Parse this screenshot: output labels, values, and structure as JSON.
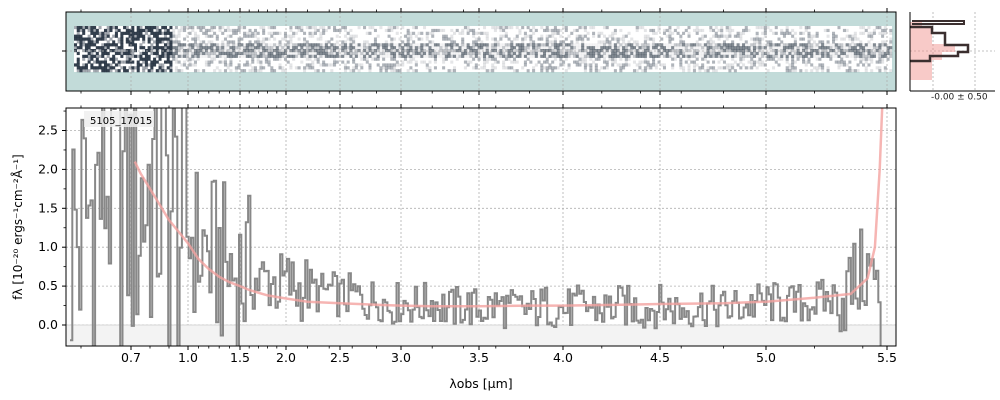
{
  "chart_data": [
    {
      "type": "heatmap",
      "panel": "2d-spectrum",
      "description_colors": {
        "background": "#c2dbd9",
        "low": "#ffffff",
        "high": "#1e2b3b"
      },
      "xaxis_ref": "shared with 1d-spectrum",
      "grid": true
    },
    {
      "type": "line",
      "panel": "cross-dispersion-profile",
      "annotation": "-0.00 ± 0.50",
      "series": [
        {
          "name": "",
          "color": "#ef8a85",
          "style": "filled-steps"
        },
        {
          "name": "",
          "color": "#3b2f2f",
          "style": "steps"
        }
      ],
      "grid": true
    },
    {
      "type": "line",
      "panel": "1d-spectrum",
      "title": "",
      "label": "5105_17015",
      "xlabel": "λobs [μm]",
      "ylabel": "fλ [10⁻²⁰ ergs⁻¹cm⁻²Å⁻¹]",
      "xscale": "nonlinear (resolution-matched)",
      "xticks": [
        0.7,
        1.0,
        1.5,
        2.0,
        2.5,
        3.0,
        3.5,
        4.0,
        4.5,
        5.0,
        5.5
      ],
      "xtick_labels": [
        "0.7",
        "1.0",
        "1.5",
        "2.0",
        "2.5",
        "3.0",
        "3.5",
        "4.0",
        "4.5",
        "5.0",
        "5.5"
      ],
      "yticks": [
        0.0,
        0.5,
        1.0,
        1.5,
        2.0,
        2.5
      ],
      "ytick_labels": [
        "0.0",
        "0.5",
        "1.0",
        "1.5",
        "2.0",
        "2.5"
      ],
      "xlim": [
        0.57,
        5.53
      ],
      "ylim": [
        -0.28,
        2.8
      ],
      "grid": true,
      "series": [
        {
          "name": "",
          "color": "#888888",
          "style": "steps",
          "x": [
            0.6,
            0.65,
            0.7,
            0.75,
            0.8,
            0.85,
            0.9,
            0.95,
            1.0,
            1.1,
            1.2,
            1.3,
            1.4,
            1.5,
            1.6,
            1.7,
            1.8,
            1.9,
            2.0,
            2.1,
            2.2,
            2.3,
            2.4,
            2.5,
            2.6,
            2.7,
            2.8,
            2.9,
            3.0,
            3.1,
            3.2,
            3.3,
            3.4,
            3.5,
            3.6,
            3.7,
            3.8,
            3.9,
            4.0,
            4.1,
            4.2,
            4.3,
            4.4,
            4.5,
            4.6,
            4.7,
            4.8,
            4.9,
            5.0,
            5.1,
            5.2,
            5.3,
            5.35,
            5.4,
            5.45,
            5.47
          ],
          "y": [
            1.2,
            2.0,
            1.5,
            1.6,
            1.8,
            1.7,
            1.5,
            1.3,
            1.2,
            1.0,
            0.9,
            0.8,
            0.7,
            0.65,
            0.6,
            0.55,
            0.6,
            0.5,
            0.55,
            0.45,
            0.5,
            0.4,
            0.45,
            0.35,
            0.4,
            0.3,
            0.35,
            0.25,
            0.3,
            0.25,
            0.3,
            0.2,
            0.25,
            0.2,
            0.25,
            0.2,
            0.2,
            0.25,
            0.2,
            0.25,
            0.2,
            0.25,
            0.2,
            0.25,
            0.2,
            0.25,
            0.2,
            0.25,
            0.3,
            0.25,
            0.3,
            0.35,
            0.5,
            0.7,
            0.6,
            -0.3
          ]
        },
        {
          "name": "",
          "color": "#f4a3a0",
          "style": "line",
          "x": [
            0.72,
            0.75,
            0.8,
            0.85,
            0.9,
            0.95,
            1.0,
            1.05,
            1.1,
            1.2,
            1.3,
            1.4,
            1.5,
            1.6,
            1.8,
            2.0,
            2.2,
            2.5,
            2.8,
            3.0,
            3.2,
            3.5,
            3.8,
            4.0,
            4.3,
            4.5,
            4.8,
            5.0,
            5.2,
            5.35,
            5.42,
            5.45,
            5.47,
            5.48
          ],
          "y": [
            2.1,
            1.95,
            1.75,
            1.55,
            1.35,
            1.2,
            1.05,
            0.95,
            0.85,
            0.72,
            0.62,
            0.55,
            0.5,
            0.45,
            0.38,
            0.34,
            0.3,
            0.28,
            0.26,
            0.25,
            0.24,
            0.24,
            0.25,
            0.25,
            0.26,
            0.27,
            0.28,
            0.3,
            0.35,
            0.4,
            0.6,
            1.0,
            2.0,
            2.8
          ]
        }
      ]
    }
  ]
}
